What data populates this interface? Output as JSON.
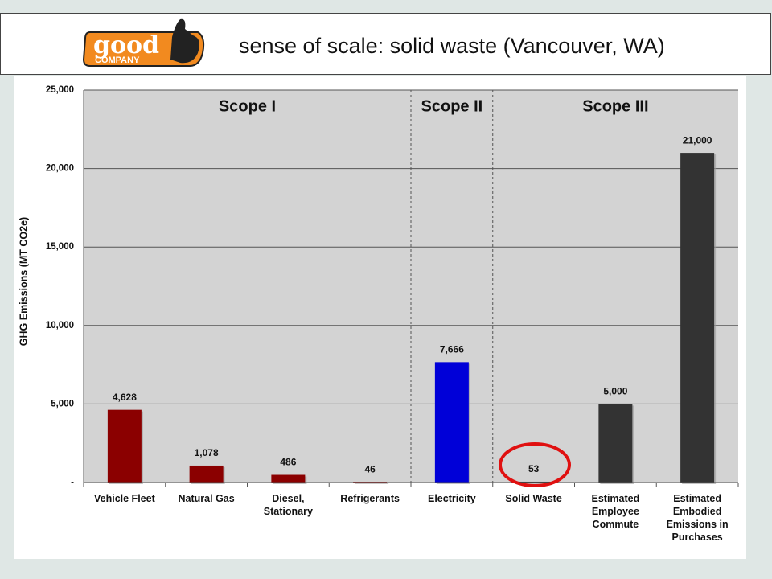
{
  "logo": {
    "word": "good",
    "sub": "COMPANY"
  },
  "chart_data": {
    "type": "bar",
    "title": "sense of scale:  solid waste (Vancouver, WA)",
    "y_label": "GHG Emissions (MT CO2e)",
    "annotations": [
      "Scope I",
      "Scope II",
      "Scope III"
    ],
    "categories": [
      "Vehicle Fleet",
      "Natural Gas",
      "Diesel, Stationary",
      "Refrigerants",
      "Electricity",
      "Solid Waste",
      "Estimated Employee Commute",
      "Estimated Embodied Emissions in Purchases"
    ],
    "values": [
      4628,
      1078,
      486,
      46,
      7666,
      53,
      5000,
      21000
    ],
    "value_labels": [
      "4,628",
      "1,078",
      "486",
      "46",
      "7,666",
      "53",
      "5,000",
      "21,000"
    ],
    "colors": [
      "#8b0000",
      "#8b0000",
      "#8b0000",
      "#8b0000",
      "#0000d8",
      "#333333",
      "#333333",
      "#333333"
    ],
    "ylim": [
      0,
      25000
    ],
    "yticks": [
      {
        "value": 0,
        "label": "-"
      },
      {
        "value": 5000,
        "label": "5,000"
      },
      {
        "value": 10000,
        "label": "10,000"
      },
      {
        "value": 15000,
        "label": "15,000"
      },
      {
        "value": 20000,
        "label": "20,000"
      },
      {
        "value": 25000,
        "label": "25,000"
      }
    ],
    "grid": true
  }
}
